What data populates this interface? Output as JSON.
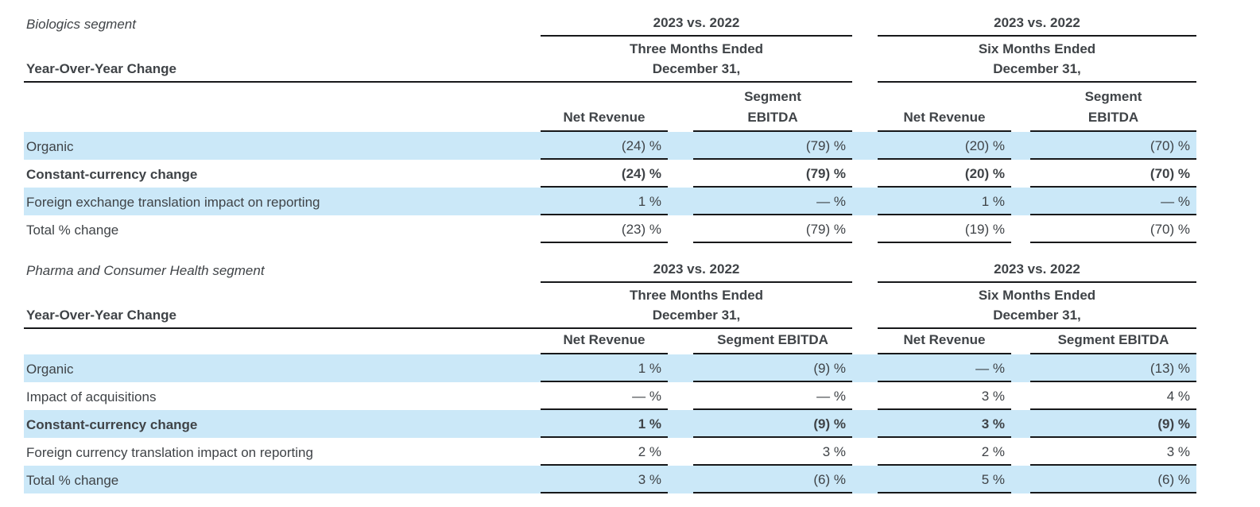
{
  "colors": {
    "highlight": "#cbe8f8",
    "text": "#3f4347",
    "rule": "#17181a"
  },
  "sections": [
    {
      "title": "Biologics segment",
      "year_over_year_label": "Year-Over-Year Change",
      "groups": [
        {
          "compare": "2023 vs. 2022",
          "period_line1": "Three Months Ended",
          "period_line2": "December 31,",
          "net_revenue_header": "Net Revenue",
          "ebitda_header_line1": "Segment",
          "ebitda_header_line2": "EBITDA"
        },
        {
          "compare": "2023 vs. 2022",
          "period_line1": "Six Months Ended",
          "period_line2": "December 31,",
          "net_revenue_header": "Net Revenue",
          "ebitda_header_line1": "Segment",
          "ebitda_header_line2": "EBITDA"
        }
      ],
      "rows": [
        {
          "label": "Organic",
          "values": [
            "(24) %",
            "(79) %",
            "(20) %",
            "(70) %"
          ]
        },
        {
          "label": "Constant-currency change",
          "values": [
            "(24) %",
            "(79) %",
            "(20) %",
            "(70) %"
          ]
        },
        {
          "label": "Foreign exchange translation impact on reporting",
          "values": [
            "1 %",
            "— %",
            "1 %",
            "— %"
          ]
        },
        {
          "label": "Total % change",
          "values": [
            "(23) %",
            "(79) %",
            "(19) %",
            "(70) %"
          ]
        }
      ]
    },
    {
      "title": "Pharma and Consumer Health segment",
      "year_over_year_label": "Year-Over-Year Change",
      "groups": [
        {
          "compare": "2023 vs. 2022",
          "period_line1": "Three Months Ended",
          "period_line2": "December 31,",
          "net_revenue_header": "Net Revenue",
          "segment_ebitda_header": "Segment EBITDA"
        },
        {
          "compare": "2023 vs. 2022",
          "period_line1": "Six Months Ended",
          "period_line2": "December 31,",
          "net_revenue_header": "Net Revenue",
          "segment_ebitda_header": "Segment EBITDA"
        }
      ],
      "rows": [
        {
          "label": "Organic",
          "values": [
            "1 %",
            "(9) %",
            "— %",
            "(13) %"
          ]
        },
        {
          "label": "Impact of acquisitions",
          "values": [
            "— %",
            "— %",
            "3 %",
            "4 %"
          ]
        },
        {
          "label": "Constant-currency change",
          "values": [
            "1 %",
            "(9) %",
            "3 %",
            "(9) %"
          ]
        },
        {
          "label": "Foreign currency translation impact on reporting",
          "values": [
            "2 %",
            "3 %",
            "2 %",
            "3 %"
          ]
        },
        {
          "label": "Total % change",
          "values": [
            "3 %",
            "(6) %",
            "5 %",
            "(6) %"
          ]
        }
      ]
    }
  ]
}
